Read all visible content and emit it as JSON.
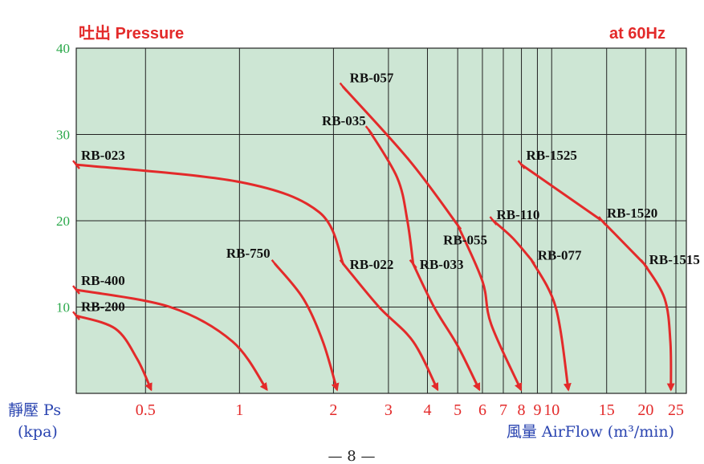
{
  "header": {
    "left_title": "吐出 Pressure",
    "right_title": "at 60Hz"
  },
  "footer": {
    "page_number": "— 8 —"
  },
  "colors": {
    "plot_background": "#cde6d4",
    "curve": "#e32a2a",
    "title": "#e32a2a",
    "y_ticks": "#2aa84a",
    "axis_labels": "#2a44b0",
    "grid": "#222222"
  },
  "chart_data": {
    "type": "line",
    "title": "吐出 Pressure",
    "subtitle": "at 60Hz",
    "xlabel": "風量 AirFlow (m³/min)",
    "ylabel_line1": "靜壓 Ps",
    "ylabel_line2": "(kpa)",
    "x_scale": "log",
    "xlim": [
      0.3,
      27
    ],
    "ylim": [
      0,
      40
    ],
    "grid": true,
    "y_ticks": [
      10,
      20,
      30,
      40
    ],
    "y_tick_labels": [
      "10",
      "20",
      "30",
      "40"
    ],
    "x_ticks": [
      0.5,
      1,
      2,
      3,
      4,
      5,
      6,
      7,
      8,
      9,
      10,
      15,
      20,
      25
    ],
    "x_tick_labels": [
      "0.5",
      "1",
      "2",
      "3",
      "4",
      "5",
      "6",
      "7",
      "8",
      "9",
      "10",
      "15",
      "20",
      "25"
    ],
    "series": [
      {
        "name": "RB-200",
        "x": [
          0.3,
          0.4,
          0.47,
          0.52
        ],
        "y": [
          9,
          7.5,
          4,
          0.5
        ],
        "label_at": [
          0.3,
          9
        ]
      },
      {
        "name": "RB-400",
        "x": [
          0.3,
          0.6,
          0.95,
          1.22
        ],
        "y": [
          12,
          10,
          6,
          0.5
        ],
        "label_at": [
          0.3,
          12
        ]
      },
      {
        "name": "RB-750",
        "x": [
          1.3,
          1.6,
          1.85,
          2.05
        ],
        "y": [
          15,
          11,
          6,
          0.5
        ],
        "label_at": [
          1.3,
          15
        ]
      },
      {
        "name": "RB-023",
        "x": [
          0.3,
          1.0,
          1.8,
          2.15
        ],
        "y": [
          26.5,
          24.5,
          21,
          15
        ],
        "label_at": [
          0.3,
          26.5
        ]
      },
      {
        "name": "RB-022",
        "x": [
          2.15,
          2.8,
          3.6,
          4.3
        ],
        "y": [
          15,
          10,
          6,
          0.5
        ],
        "label_at": [
          2.15,
          15
        ]
      },
      {
        "name": "RB-035",
        "x": [
          2.6,
          3.2,
          3.45,
          3.6
        ],
        "y": [
          30.5,
          25,
          20,
          15
        ],
        "label_at": [
          2.6,
          30.5
        ]
      },
      {
        "name": "RB-033",
        "x": [
          3.6,
          4.2,
          5.0,
          5.85
        ],
        "y": [
          15,
          10,
          5.5,
          0.5
        ],
        "label_at": [
          3.6,
          15
        ]
      },
      {
        "name": "RB-057",
        "x": [
          2.15,
          3.5,
          5.0
        ],
        "y": [
          35.5,
          27,
          19.5
        ],
        "label_at": [
          2.15,
          35.5
        ]
      },
      {
        "name": "RB-055",
        "x": [
          5.0,
          6.0,
          6.4,
          7.95
        ],
        "y": [
          19.5,
          13,
          8,
          0.5
        ],
        "label_at": [
          5.0,
          19.5
        ]
      },
      {
        "name": "RB-110",
        "x": [
          6.5,
          7.5,
          8.6
        ],
        "y": [
          20,
          18,
          15.5
        ],
        "label_at": [
          6.5,
          20
        ]
      },
      {
        "name": "RB-077",
        "x": [
          8.6,
          10.3,
          11.3
        ],
        "y": [
          15.5,
          10,
          0.5
        ],
        "label_at": [
          8.6,
          15.5
        ]
      },
      {
        "name": "RB-1525",
        "x": [
          8.0,
          14.5
        ],
        "y": [
          26.5,
          20
        ],
        "label_at": [
          8.0,
          26.5
        ]
      },
      {
        "name": "RB-1520",
        "x": [
          14.5,
          19.8
        ],
        "y": [
          20,
          15
        ],
        "label_at": [
          14.5,
          20
        ]
      },
      {
        "name": "RB-1515",
        "x": [
          19.8,
          23.0,
          24.0,
          24.1
        ],
        "y": [
          15,
          11,
          6,
          0.5
        ],
        "label_at": [
          19.8,
          15
        ]
      }
    ]
  }
}
